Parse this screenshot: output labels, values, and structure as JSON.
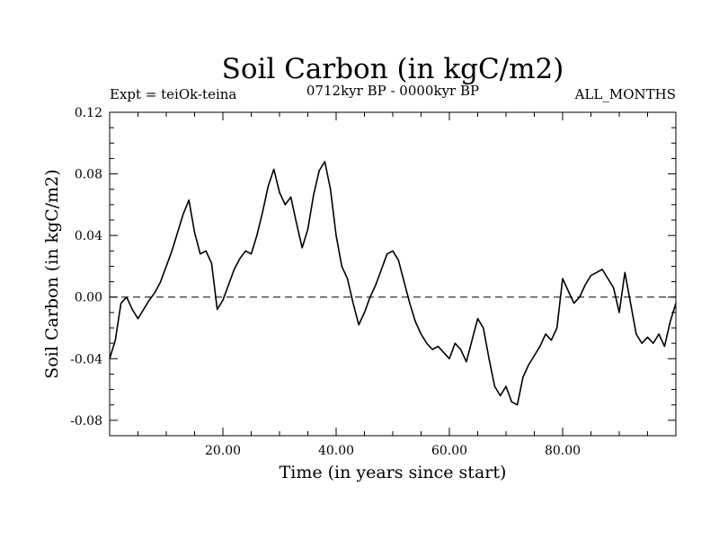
{
  "chart_data": {
    "type": "line",
    "title": "Soil Carbon (in kgC/m2)",
    "subtitle": "0712kyr BP - 0000kyr BP",
    "experiment": "Expt = teiOk-teina",
    "period": "ALL_MONTHS",
    "xlabel": "Time (in years since start)",
    "ylabel": "Soil Carbon (in kgC/m2)",
    "xlim": [
      0,
      100
    ],
    "ylim": [
      -0.09,
      0.12
    ],
    "xticks": [
      20,
      40,
      60,
      80
    ],
    "xtick_labels": [
      "20.00",
      "40.00",
      "60.00",
      "80.00"
    ],
    "yticks": [
      -0.08,
      -0.04,
      0.0,
      0.04,
      0.08,
      0.12
    ],
    "ytick_labels": [
      "-0.08",
      "-0.04",
      "0.00",
      "0.04",
      "0.08",
      "0.12"
    ],
    "reference_line": 0.0,
    "grid": false,
    "series": [
      {
        "name": "Soil Carbon",
        "x": [
          0,
          1,
          2,
          3,
          4,
          5,
          6,
          7,
          8,
          9,
          10,
          11,
          12,
          13,
          14,
          15,
          16,
          17,
          18,
          19,
          20,
          21,
          22,
          23,
          24,
          25,
          26,
          27,
          28,
          29,
          30,
          31,
          32,
          33,
          34,
          35,
          36,
          37,
          38,
          39,
          40,
          41,
          42,
          43,
          44,
          45,
          46,
          47,
          48,
          49,
          50,
          51,
          52,
          53,
          54,
          55,
          56,
          57,
          58,
          59,
          60,
          61,
          62,
          63,
          64,
          65,
          66,
          67,
          68,
          69,
          70,
          71,
          72,
          73,
          74,
          75,
          76,
          77,
          78,
          79,
          80,
          81,
          82,
          83,
          84,
          85,
          86,
          87,
          88,
          89,
          90,
          91,
          92,
          93,
          94,
          95,
          96,
          97,
          98,
          99,
          100
        ],
        "values": [
          -0.04,
          -0.028,
          -0.004,
          0.0,
          -0.008,
          -0.014,
          -0.008,
          -0.002,
          0.003,
          0.01,
          0.02,
          0.03,
          0.042,
          0.054,
          0.063,
          0.042,
          0.028,
          0.03,
          0.022,
          -0.008,
          -0.002,
          0.008,
          0.018,
          0.025,
          0.03,
          0.028,
          0.04,
          0.055,
          0.072,
          0.083,
          0.068,
          0.06,
          0.065,
          0.048,
          0.032,
          0.044,
          0.066,
          0.082,
          0.088,
          0.07,
          0.04,
          0.02,
          0.012,
          -0.004,
          -0.018,
          -0.01,
          0.0,
          0.008,
          0.018,
          0.028,
          0.03,
          0.024,
          0.01,
          -0.004,
          -0.016,
          -0.024,
          -0.03,
          -0.034,
          -0.032,
          -0.036,
          -0.04,
          -0.03,
          -0.034,
          -0.042,
          -0.028,
          -0.014,
          -0.02,
          -0.04,
          -0.058,
          -0.064,
          -0.058,
          -0.068,
          -0.07,
          -0.052,
          -0.044,
          -0.038,
          -0.032,
          -0.024,
          -0.028,
          -0.02,
          0.012,
          0.004,
          -0.004,
          0.0,
          0.008,
          0.014,
          0.016,
          0.018,
          0.012,
          0.006,
          -0.01,
          0.016,
          -0.004,
          -0.024,
          -0.03,
          -0.026,
          -0.03,
          -0.024,
          -0.032,
          -0.016,
          -0.004
        ]
      }
    ]
  }
}
